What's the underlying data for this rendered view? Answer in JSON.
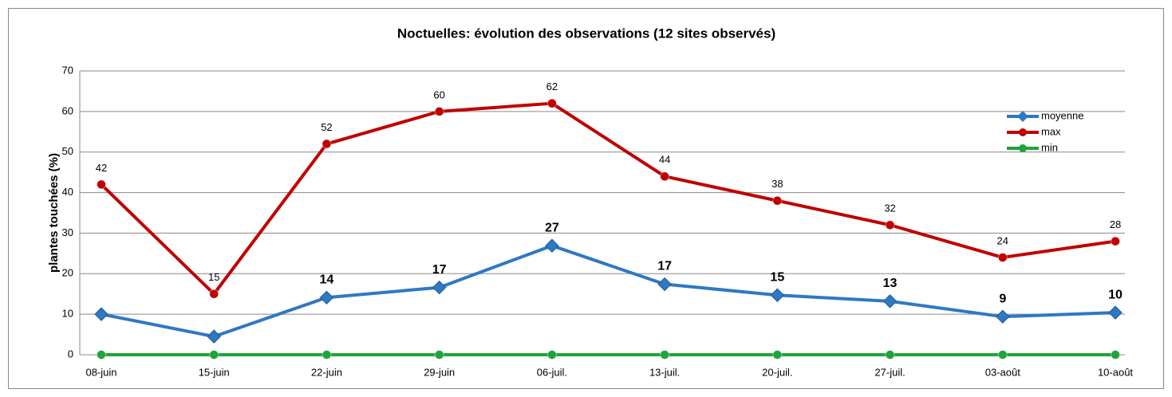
{
  "chart_data": {
    "type": "line",
    "title": "Noctuelles: évolution des observations  (12 sites observés)",
    "y_label": "plantes touchées (%)",
    "categories": [
      "08-juin",
      "15-juin",
      "22-juin",
      "29-juin",
      "06-juil.",
      "13-juil.",
      "20-juil.",
      "27-juil.",
      "03-août",
      "10-août"
    ],
    "series": [
      {
        "name": "moyenne",
        "color": "#2f78c4",
        "marker": "diamond",
        "label_bold": true,
        "values": [
          10,
          4.5,
          14.1,
          16.6,
          26.9,
          17.4,
          14.7,
          13.2,
          9.4,
          10.4
        ],
        "value_labels": [
          null,
          null,
          "14",
          "17",
          "27",
          "17",
          "15",
          "13",
          "9",
          "10"
        ]
      },
      {
        "name": "max",
        "color": "#c00000",
        "marker": "circle",
        "values": [
          42,
          15,
          52,
          60,
          62,
          44,
          38,
          32,
          24,
          28
        ],
        "value_labels": [
          "42",
          "15",
          "52",
          "60",
          "62",
          "44",
          "38",
          "32",
          "24",
          "28"
        ]
      },
      {
        "name": "min",
        "color": "#1fa33a",
        "marker": "circle",
        "values": [
          0,
          0,
          0,
          0,
          0,
          0,
          0,
          0,
          0,
          0
        ]
      }
    ],
    "ylim": [
      0,
      70
    ],
    "yticks": [
      0,
      10,
      20,
      30,
      40,
      50,
      60,
      70
    ],
    "grid": true,
    "legend": "upper right"
  }
}
